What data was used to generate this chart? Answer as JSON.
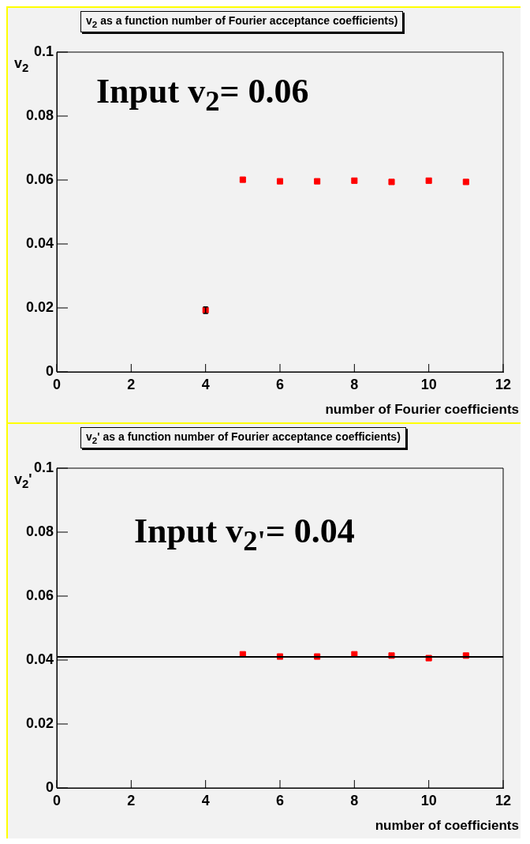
{
  "chart_data": [
    {
      "type": "scatter",
      "title": "v$_{2}$ as a function number of Fourier acceptance coefficients)",
      "xlabel": "number of Fourier coefficients",
      "ylabel": "v$_{2}$",
      "annotations": [
        "Input v$_{2}$= 0.06"
      ],
      "x": [
        4,
        5,
        6,
        7,
        8,
        9,
        10,
        11
      ],
      "series": [
        {
          "color": "#ff0000",
          "values": [
            0.0193,
            0.0601,
            0.0596,
            0.0596,
            0.0598,
            0.0594,
            0.0598,
            0.0594
          ],
          "errors": [
            0.001,
            null,
            null,
            null,
            null,
            null,
            null,
            null
          ]
        }
      ],
      "xlim": [
        0,
        12
      ],
      "xticks": [
        0,
        2,
        4,
        6,
        8,
        10,
        12
      ],
      "ylim": [
        0,
        0.1
      ],
      "yticks": [
        0,
        0.02,
        0.04,
        0.06,
        0.08,
        0.1
      ],
      "grid": false,
      "legend": false,
      "marker": "square"
    },
    {
      "type": "scatter",
      "title": "v$_{2}$' as a function number of Fourier acceptance coefficients)",
      "xlabel": "number of coefficients",
      "ylabel": "v$_{2}$'",
      "annotations": [
        "Input v$_{2'}$= 0.04"
      ],
      "x": [
        5,
        6,
        7,
        8,
        9,
        10,
        11
      ],
      "series": [
        {
          "color": "#ff0000",
          "values": [
            0.0418,
            0.0411,
            0.0411,
            0.0418,
            0.0414,
            0.0406,
            0.0414
          ]
        }
      ],
      "ref_lines": [
        {
          "axis": "y",
          "value": 0.041,
          "color": "#000000"
        }
      ],
      "xlim": [
        0,
        12
      ],
      "xticks": [
        0,
        2,
        4,
        6,
        8,
        10,
        12
      ],
      "ylim": [
        0,
        0.1
      ],
      "yticks": [
        0,
        0.02,
        0.04,
        0.06,
        0.08,
        0.1
      ],
      "grid": false,
      "legend": false,
      "marker": "square"
    }
  ]
}
